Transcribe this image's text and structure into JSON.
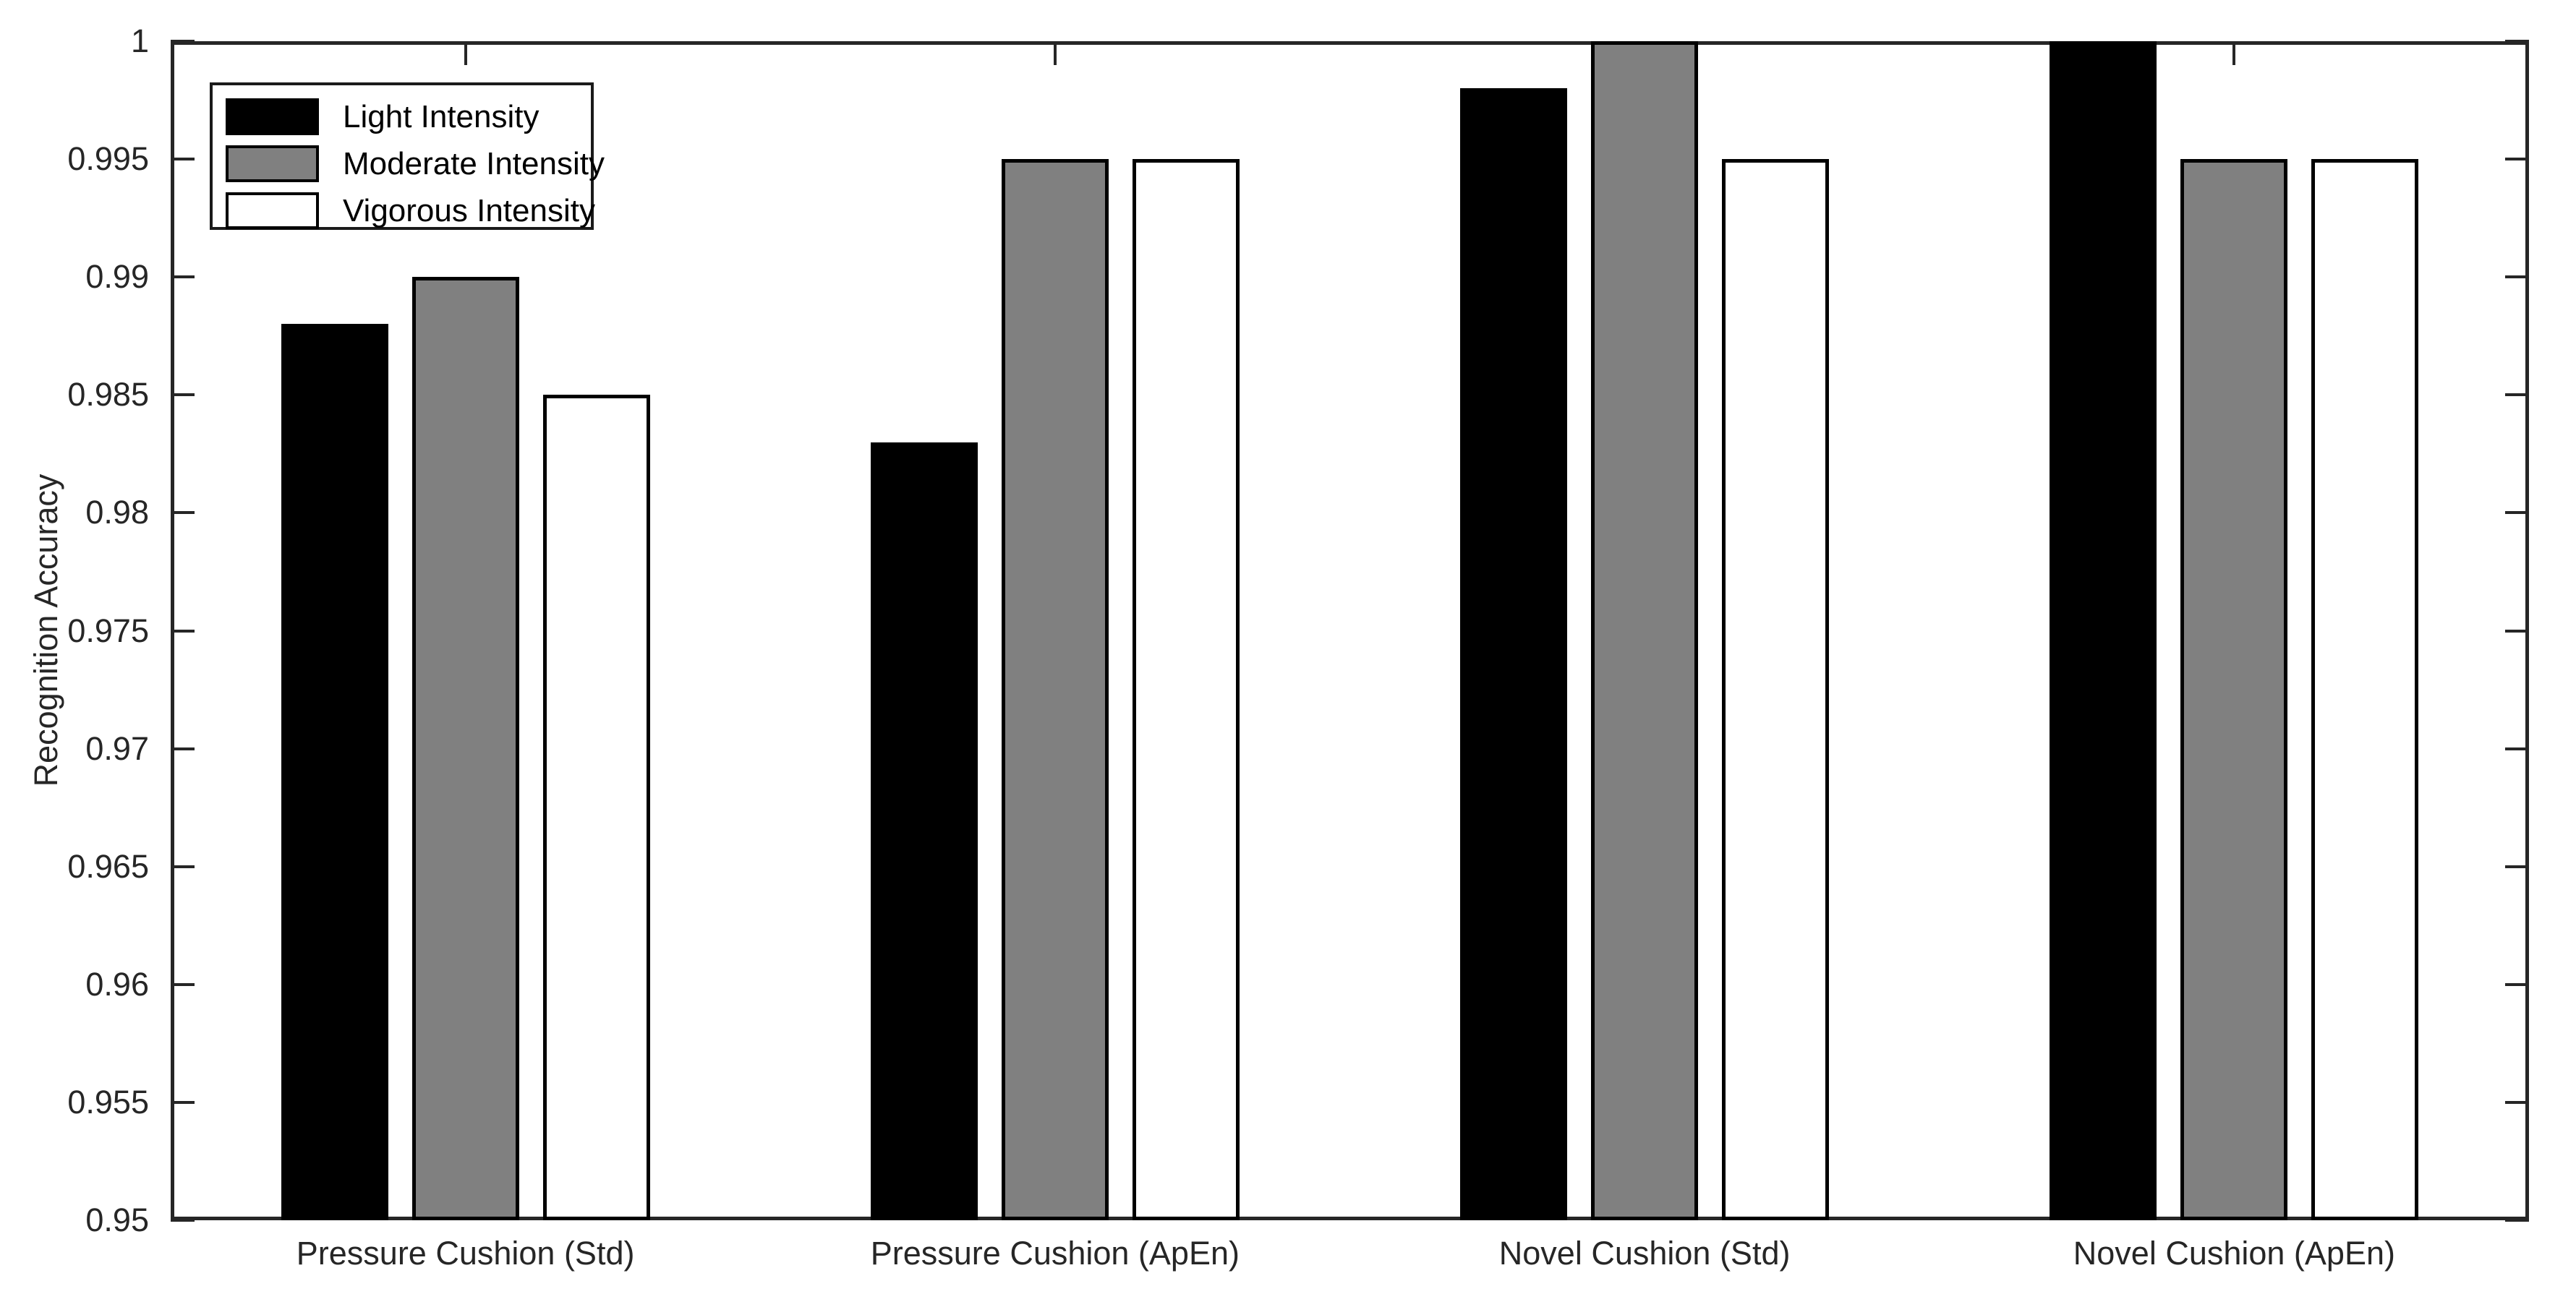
{
  "chart_data": {
    "type": "bar",
    "title": "",
    "xlabel": "",
    "ylabel": "Recognition Accuracy",
    "ylim": [
      0.95,
      1
    ],
    "ytick_step": 0.005,
    "yticks": [
      0.95,
      0.955,
      0.96,
      0.965,
      0.97,
      0.975,
      0.98,
      0.985,
      0.99,
      0.995,
      1
    ],
    "ytick_labels": [
      "0.95",
      "0.955",
      "0.96",
      "0.965",
      "0.97",
      "0.975",
      "0.98",
      "0.985",
      "0.99",
      "0.995",
      "1"
    ],
    "categories": [
      "Pressure Cushion (Std)",
      "Pressure Cushion (ApEn)",
      "Novel Cushion (Std)",
      "Novel Cushion (ApEn)"
    ],
    "series": [
      {
        "name": "Light Intensity",
        "fill": "#000000",
        "values": [
          0.988,
          0.983,
          0.998,
          1.0
        ]
      },
      {
        "name": "Moderate Intensity",
        "fill": "#808080",
        "values": [
          0.99,
          0.995,
          1.0,
          0.995
        ]
      },
      {
        "name": "Vigorous Intensity",
        "fill": "#ffffff",
        "values": [
          0.985,
          0.995,
          0.995,
          0.995
        ]
      }
    ],
    "legend_position": "top-left",
    "grid": false,
    "axis_color": "#262626",
    "bar_edge_color": "#000000",
    "background_color": "#ffffff"
  }
}
